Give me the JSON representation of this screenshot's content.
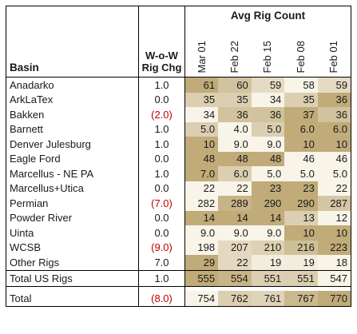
{
  "table": {
    "basin_header": "Basin",
    "wow_header_line1": "W-o-W",
    "wow_header_line2": "Rig Chg",
    "avg_header": "Avg Rig Count",
    "dates": [
      "Mar 01",
      "Feb 22",
      "Feb 15",
      "Feb 08",
      "Feb 01"
    ],
    "rows": [
      {
        "basin": "Anadarko",
        "wow": "1.0",
        "values": [
          "61",
          "60",
          "59",
          "58",
          "59"
        ]
      },
      {
        "basin": "ArkLaTex",
        "wow": "0.0",
        "values": [
          "35",
          "35",
          "34",
          "35",
          "36"
        ]
      },
      {
        "basin": "Bakken",
        "wow": "(2.0)",
        "values": [
          "34",
          "36",
          "36",
          "37",
          "36"
        ]
      },
      {
        "basin": "Barnett",
        "wow": "1.0",
        "values": [
          "5.0",
          "4.0",
          "5.0",
          "6.0",
          "6.0"
        ]
      },
      {
        "basin": "Denver Julesburg",
        "wow": "1.0",
        "values": [
          "10",
          "9.0",
          "9.0",
          "10",
          "10"
        ]
      },
      {
        "basin": "Eagle Ford",
        "wow": "0.0",
        "values": [
          "48",
          "48",
          "48",
          "46",
          "46"
        ]
      },
      {
        "basin": "Marcellus - NE PA",
        "wow": "1.0",
        "values": [
          "7.0",
          "6.0",
          "5.0",
          "5.0",
          "5.0"
        ]
      },
      {
        "basin": "Marcellus+Utica",
        "wow": "0.0",
        "values": [
          "22",
          "22",
          "23",
          "23",
          "22"
        ]
      },
      {
        "basin": "Permian",
        "wow": "(7.0)",
        "values": [
          "282",
          "289",
          "290",
          "290",
          "287"
        ]
      },
      {
        "basin": "Powder River",
        "wow": "0.0",
        "values": [
          "14",
          "14",
          "14",
          "13",
          "12"
        ]
      },
      {
        "basin": "Uinta",
        "wow": "0.0",
        "values": [
          "9.0",
          "9.0",
          "9.0",
          "10",
          "10"
        ]
      },
      {
        "basin": "WCSB",
        "wow": "(9.0)",
        "values": [
          "198",
          "207",
          "210",
          "216",
          "223"
        ]
      },
      {
        "basin": "Other Rigs",
        "wow": "7.0",
        "values": [
          "29",
          "22",
          "19",
          "19",
          "18"
        ]
      }
    ],
    "totals": [
      {
        "basin": "Total US Rigs",
        "wow": "1.0",
        "values": [
          "555",
          "554",
          "551",
          "551",
          "547"
        ]
      },
      {
        "basin": "Total",
        "wow": "(8.0)",
        "values": [
          "754",
          "762",
          "761",
          "767",
          "770"
        ]
      }
    ],
    "colors": {
      "negative_text": "#c00000",
      "heat_low": "#fbf8ef",
      "heat_high": "#b9a26c",
      "border": "#000000"
    }
  }
}
